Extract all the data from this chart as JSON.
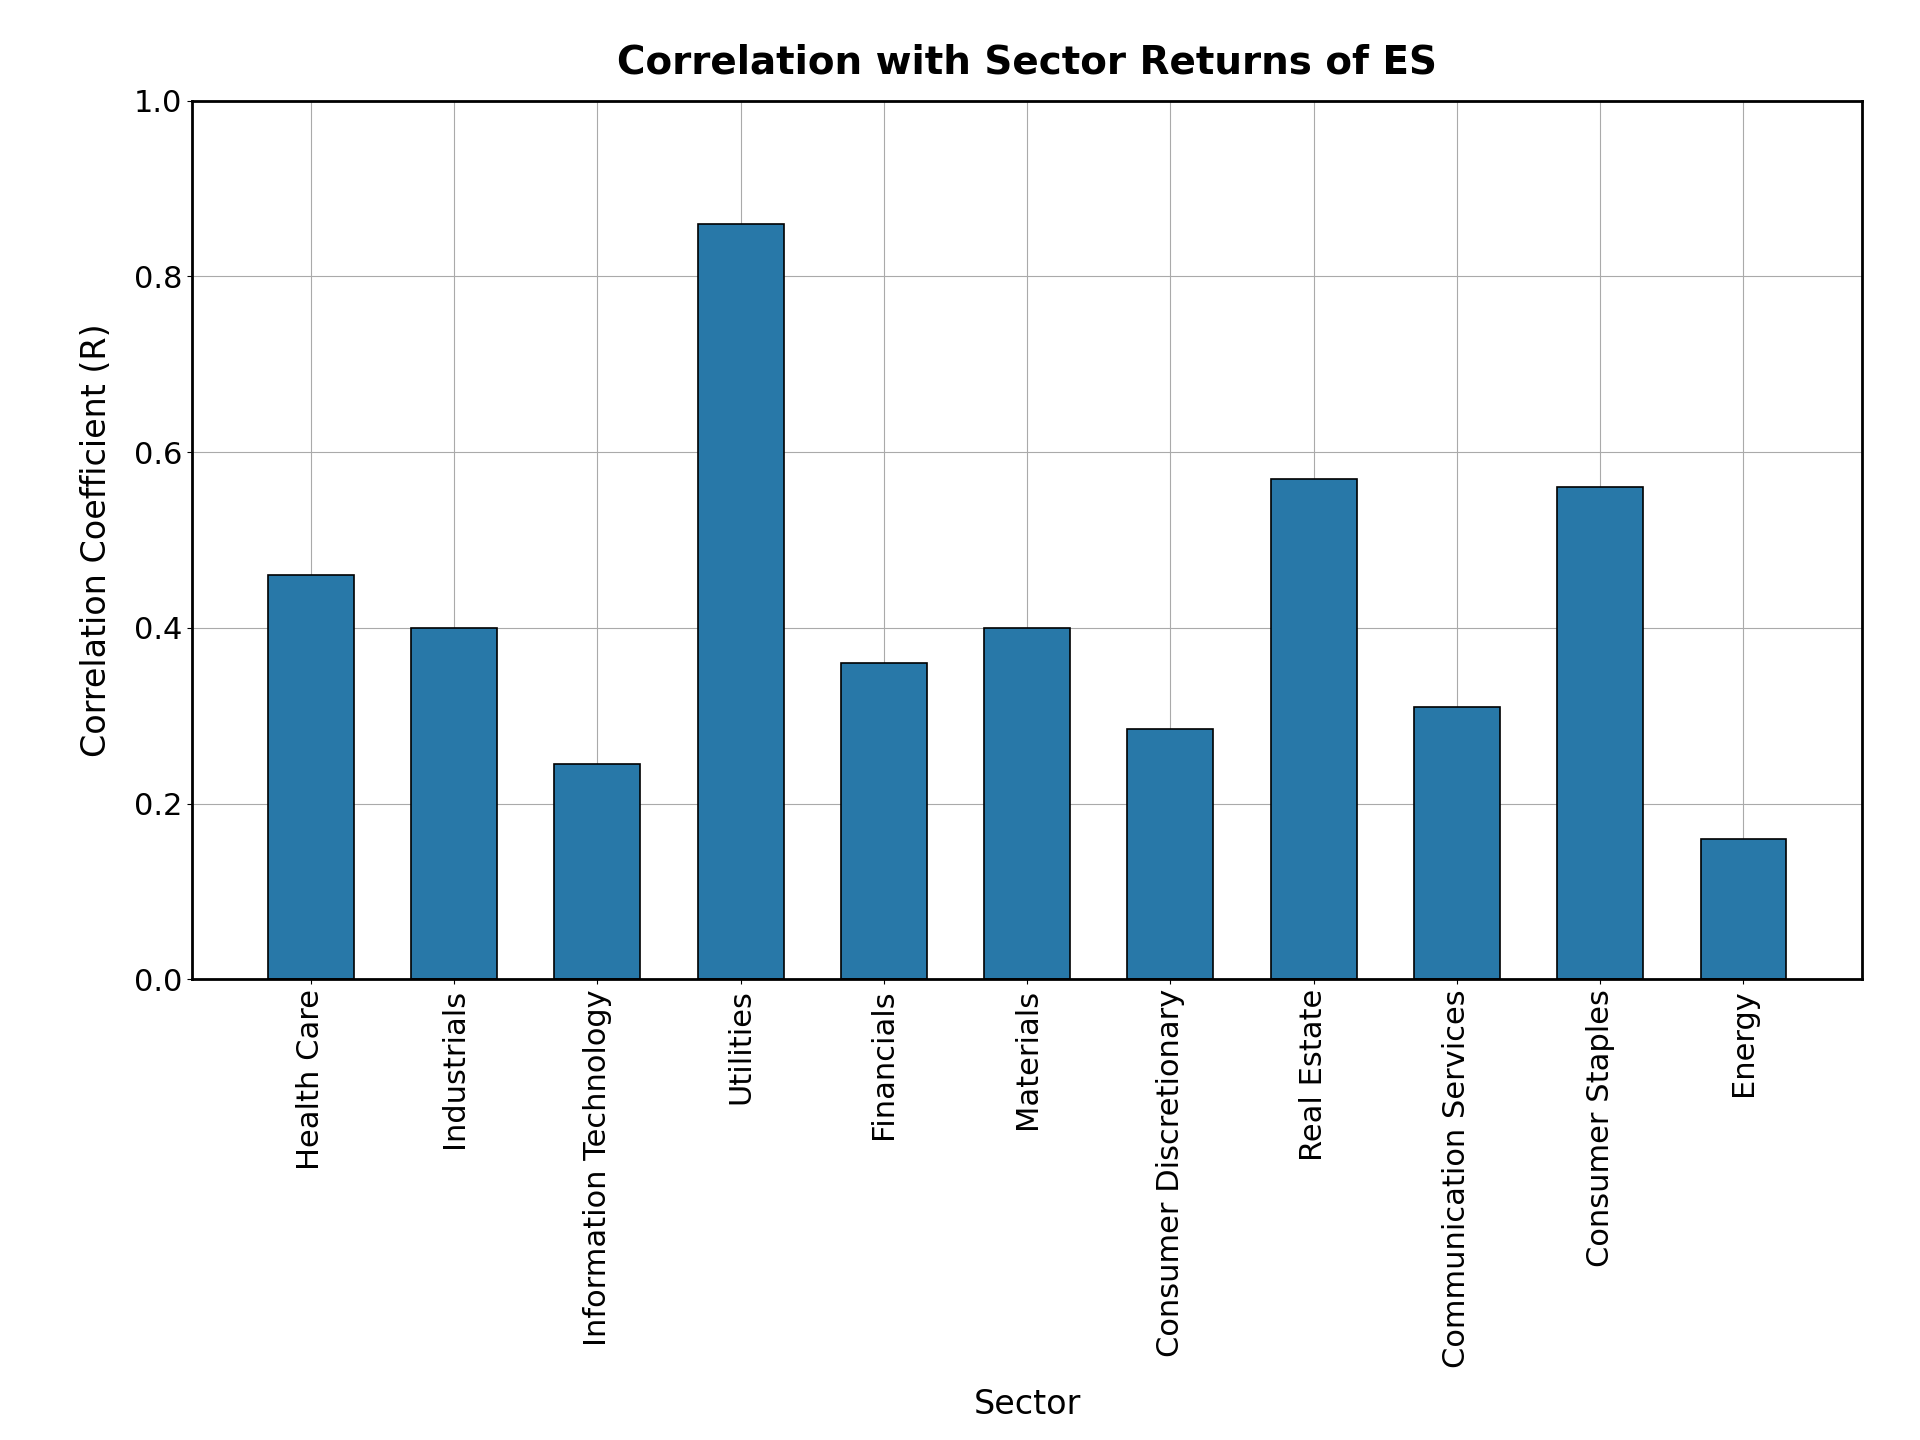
{
  "title": "Correlation with Sector Returns of ES",
  "xlabel": "Sector",
  "ylabel": "Correlation Coefficient (R)",
  "categories": [
    "Health Care",
    "Industrials",
    "Information Technology",
    "Utilities",
    "Financials",
    "Materials",
    "Consumer Discretionary",
    "Real Estate",
    "Communication Services",
    "Consumer Staples",
    "Energy"
  ],
  "values": [
    0.46,
    0.4,
    0.245,
    0.86,
    0.36,
    0.4,
    0.285,
    0.57,
    0.31,
    0.56,
    0.16
  ],
  "bar_color": "#2878a8",
  "ylim": [
    0.0,
    1.0
  ],
  "yticks": [
    0.0,
    0.2,
    0.4,
    0.6,
    0.8,
    1.0
  ],
  "title_fontsize": 28,
  "label_fontsize": 24,
  "tick_fontsize": 22,
  "xtick_fontsize": 22,
  "figsize": [
    19.2,
    14.4
  ],
  "dpi": 100,
  "bar_width": 0.6,
  "grid_color": "#aaaaaa",
  "grid_linewidth": 0.8
}
